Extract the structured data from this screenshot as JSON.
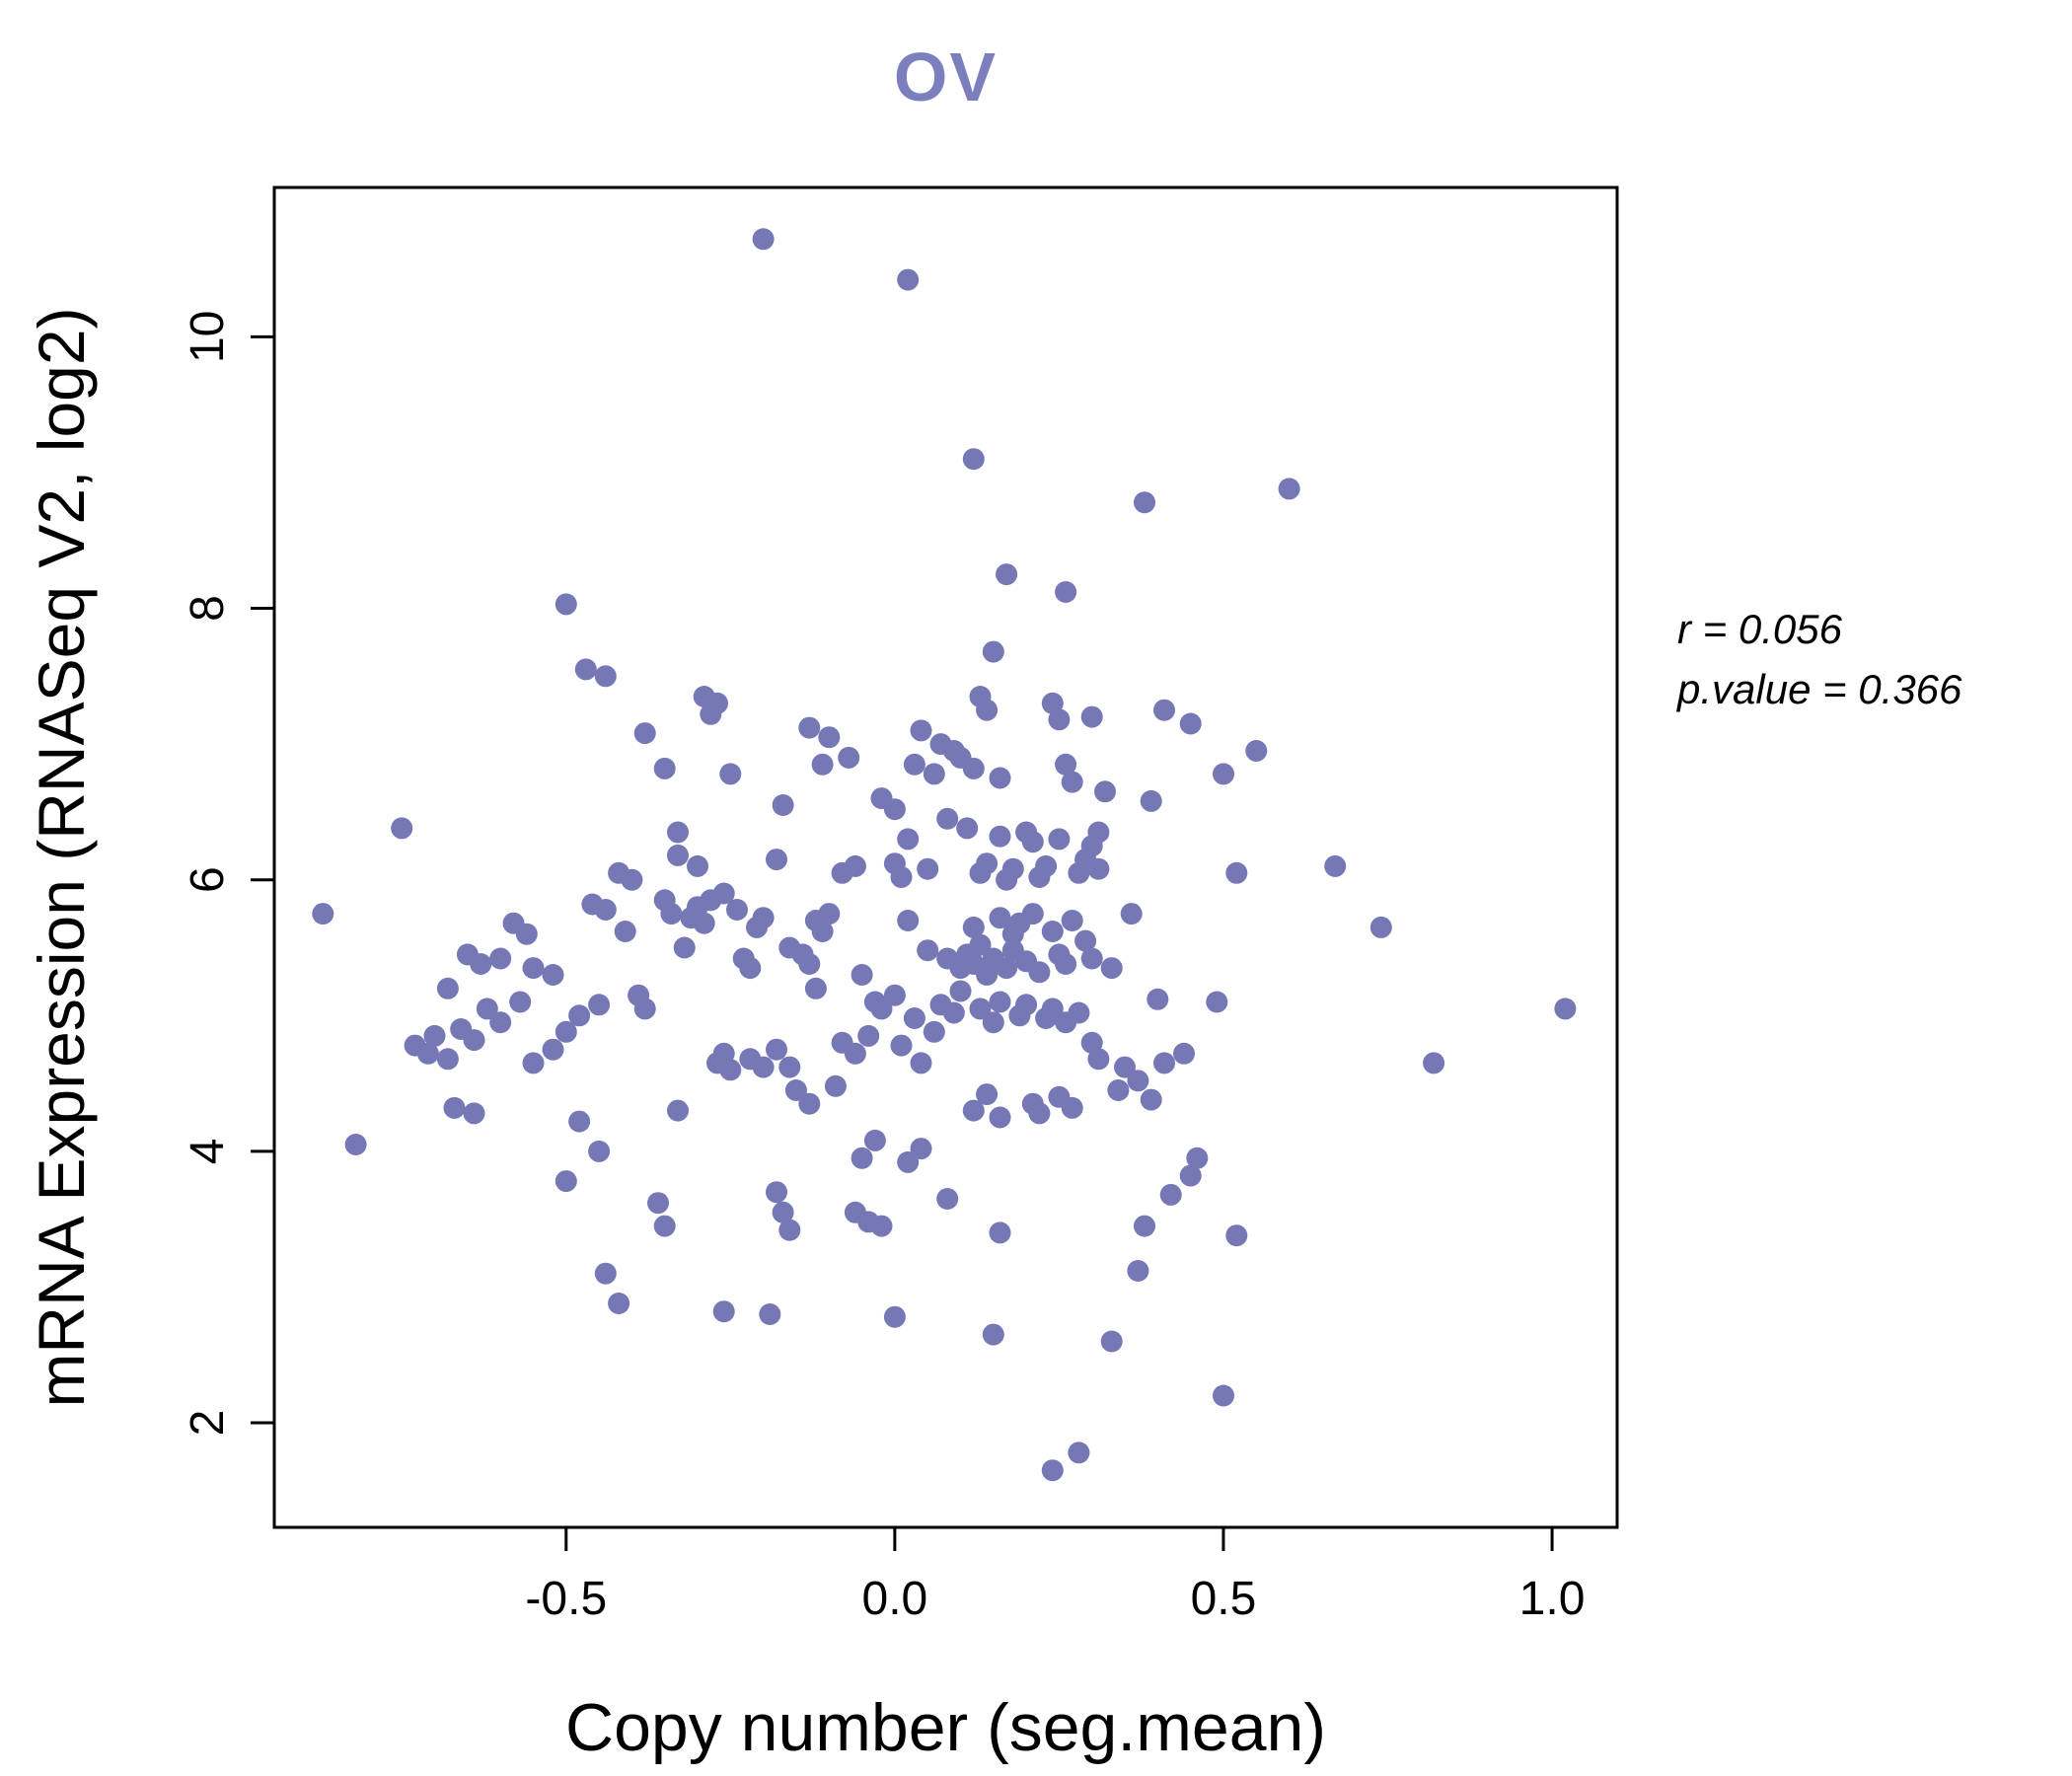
{
  "title": "OV",
  "annotation": {
    "line1": "r = 0.056",
    "line2": "p.value = 0.366"
  },
  "colors": {
    "point": "#7578b4",
    "title": "#7b7fbe",
    "axis": "#000000"
  },
  "chart_data": {
    "type": "scatter",
    "title": "OV",
    "xlabel": "Copy number (seg.mean)",
    "ylabel": "mRNA Expression (RNASeq V2, log2)",
    "xlim": [
      -0.944,
      1.099
    ],
    "ylim": [
      1.23,
      11.1
    ],
    "xticks": [
      -0.5,
      0.0,
      0.5,
      1.0
    ],
    "xtick_labels": [
      "-0.5",
      "0.0",
      "0.5",
      "1.0"
    ],
    "yticks": [
      2,
      4,
      6,
      8,
      10
    ],
    "ytick_labels": [
      "2",
      "4",
      "6",
      "8",
      "10"
    ],
    "grid": false,
    "legend": "none",
    "r": 0.056,
    "p_value": 0.366,
    "points": [
      [
        -0.2,
        10.72
      ],
      [
        0.02,
        10.42
      ],
      [
        0.12,
        9.1
      ],
      [
        0.38,
        8.78
      ],
      [
        0.6,
        8.88
      ],
      [
        0.17,
        8.25
      ],
      [
        0.26,
        8.12
      ],
      [
        -0.5,
        8.03
      ],
      [
        -0.47,
        7.55
      ],
      [
        -0.44,
        7.5
      ],
      [
        -0.29,
        7.35
      ],
      [
        -0.27,
        7.3
      ],
      [
        -0.28,
        7.22
      ],
      [
        0.15,
        7.68
      ],
      [
        0.13,
        7.35
      ],
      [
        0.14,
        7.25
      ],
      [
        0.24,
        7.3
      ],
      [
        0.25,
        7.18
      ],
      [
        0.3,
        7.2
      ],
      [
        0.41,
        7.25
      ],
      [
        0.45,
        7.15
      ],
      [
        -0.38,
        7.08
      ],
      [
        -0.13,
        7.12
      ],
      [
        -0.1,
        7.05
      ],
      [
        0.04,
        7.1
      ],
      [
        0.07,
        7.0
      ],
      [
        0.09,
        6.95
      ],
      [
        0.1,
        6.9
      ],
      [
        0.55,
        6.95
      ],
      [
        -0.35,
        6.82
      ],
      [
        -0.25,
        6.78
      ],
      [
        -0.11,
        6.85
      ],
      [
        -0.07,
        6.9
      ],
      [
        0.03,
        6.85
      ],
      [
        0.06,
        6.78
      ],
      [
        0.12,
        6.82
      ],
      [
        0.16,
        6.75
      ],
      [
        0.26,
        6.85
      ],
      [
        0.27,
        6.72
      ],
      [
        0.32,
        6.65
      ],
      [
        0.5,
        6.78
      ],
      [
        -0.17,
        6.55
      ],
      [
        -0.02,
        6.6
      ],
      [
        0.0,
        6.52
      ],
      [
        0.39,
        6.58
      ],
      [
        0.08,
        6.45
      ],
      [
        -0.75,
        6.38
      ],
      [
        -0.33,
        6.35
      ],
      [
        0.02,
        6.3
      ],
      [
        0.11,
        6.38
      ],
      [
        0.16,
        6.32
      ],
      [
        0.2,
        6.35
      ],
      [
        0.21,
        6.28
      ],
      [
        0.25,
        6.3
      ],
      [
        0.3,
        6.25
      ],
      [
        0.31,
        6.35
      ],
      [
        -0.42,
        6.05
      ],
      [
        -0.4,
        6.0
      ],
      [
        -0.33,
        6.18
      ],
      [
        -0.3,
        6.1
      ],
      [
        -0.18,
        6.15
      ],
      [
        -0.08,
        6.05
      ],
      [
        -0.06,
        6.1
      ],
      [
        0.0,
        6.12
      ],
      [
        0.01,
        6.02
      ],
      [
        0.05,
        6.08
      ],
      [
        0.13,
        6.05
      ],
      [
        0.14,
        6.12
      ],
      [
        0.17,
        6.0
      ],
      [
        0.18,
        6.08
      ],
      [
        0.22,
        6.02
      ],
      [
        0.23,
        6.1
      ],
      [
        0.28,
        6.05
      ],
      [
        0.29,
        6.15
      ],
      [
        0.31,
        6.08
      ],
      [
        0.52,
        6.05
      ],
      [
        0.67,
        6.1
      ],
      [
        -0.87,
        5.75
      ],
      [
        -0.46,
        5.82
      ],
      [
        -0.44,
        5.78
      ],
      [
        -0.41,
        5.62
      ],
      [
        -0.35,
        5.85
      ],
      [
        -0.34,
        5.75
      ],
      [
        -0.31,
        5.72
      ],
      [
        -0.3,
        5.8
      ],
      [
        -0.29,
        5.68
      ],
      [
        -0.28,
        5.85
      ],
      [
        -0.26,
        5.9
      ],
      [
        -0.24,
        5.78
      ],
      [
        -0.21,
        5.65
      ],
      [
        -0.2,
        5.72
      ],
      [
        -0.58,
        5.68
      ],
      [
        -0.56,
        5.6
      ],
      [
        -0.12,
        5.7
      ],
      [
        -0.11,
        5.62
      ],
      [
        -0.1,
        5.75
      ],
      [
        0.02,
        5.7
      ],
      [
        0.12,
        5.65
      ],
      [
        0.16,
        5.72
      ],
      [
        0.18,
        5.6
      ],
      [
        0.19,
        5.68
      ],
      [
        0.21,
        5.75
      ],
      [
        0.24,
        5.62
      ],
      [
        0.27,
        5.7
      ],
      [
        0.36,
        5.75
      ],
      [
        0.74,
        5.65
      ],
      [
        -0.65,
        5.45
      ],
      [
        -0.63,
        5.38
      ],
      [
        -0.6,
        5.42
      ],
      [
        -0.55,
        5.35
      ],
      [
        -0.52,
        5.3
      ],
      [
        -0.32,
        5.5
      ],
      [
        -0.23,
        5.42
      ],
      [
        -0.22,
        5.35
      ],
      [
        -0.16,
        5.5
      ],
      [
        -0.14,
        5.45
      ],
      [
        -0.13,
        5.38
      ],
      [
        -0.05,
        5.3
      ],
      [
        0.05,
        5.48
      ],
      [
        0.08,
        5.42
      ],
      [
        0.1,
        5.35
      ],
      [
        0.11,
        5.45
      ],
      [
        0.12,
        5.38
      ],
      [
        0.13,
        5.52
      ],
      [
        0.14,
        5.3
      ],
      [
        0.15,
        5.42
      ],
      [
        0.17,
        5.35
      ],
      [
        0.18,
        5.48
      ],
      [
        0.2,
        5.4
      ],
      [
        0.22,
        5.32
      ],
      [
        0.25,
        5.45
      ],
      [
        0.26,
        5.38
      ],
      [
        0.29,
        5.55
      ],
      [
        0.3,
        5.42
      ],
      [
        0.33,
        5.35
      ],
      [
        -0.68,
        5.2
      ],
      [
        -0.62,
        5.05
      ],
      [
        -0.6,
        4.95
      ],
      [
        -0.57,
        5.1
      ],
      [
        -0.48,
        5.0
      ],
      [
        -0.45,
        5.08
      ],
      [
        -0.39,
        5.15
      ],
      [
        -0.38,
        5.05
      ],
      [
        -0.12,
        5.2
      ],
      [
        -0.03,
        5.1
      ],
      [
        -0.02,
        5.05
      ],
      [
        0.0,
        5.15
      ],
      [
        0.03,
        4.98
      ],
      [
        0.07,
        5.08
      ],
      [
        0.09,
        5.02
      ],
      [
        0.1,
        5.18
      ],
      [
        0.13,
        5.05
      ],
      [
        0.15,
        4.95
      ],
      [
        0.16,
        5.1
      ],
      [
        0.19,
        5.0
      ],
      [
        0.2,
        5.08
      ],
      [
        0.23,
        4.98
      ],
      [
        0.24,
        5.05
      ],
      [
        0.26,
        4.95
      ],
      [
        0.28,
        5.02
      ],
      [
        0.4,
        5.12
      ],
      [
        0.49,
        5.1
      ],
      [
        1.02,
        5.05
      ],
      [
        -0.73,
        4.78
      ],
      [
        -0.71,
        4.72
      ],
      [
        -0.7,
        4.85
      ],
      [
        -0.68,
        4.68
      ],
      [
        -0.66,
        4.9
      ],
      [
        -0.64,
        4.82
      ],
      [
        -0.55,
        4.65
      ],
      [
        -0.52,
        4.75
      ],
      [
        -0.5,
        4.88
      ],
      [
        -0.27,
        4.65
      ],
      [
        -0.26,
        4.72
      ],
      [
        -0.25,
        4.6
      ],
      [
        -0.22,
        4.68
      ],
      [
        -0.2,
        4.62
      ],
      [
        -0.18,
        4.75
      ],
      [
        -0.16,
        4.62
      ],
      [
        -0.08,
        4.8
      ],
      [
        -0.06,
        4.72
      ],
      [
        -0.04,
        4.85
      ],
      [
        0.01,
        4.78
      ],
      [
        0.04,
        4.65
      ],
      [
        0.06,
        4.88
      ],
      [
        0.3,
        4.8
      ],
      [
        0.31,
        4.68
      ],
      [
        0.35,
        4.62
      ],
      [
        0.41,
        4.65
      ],
      [
        0.44,
        4.72
      ],
      [
        0.82,
        4.65
      ],
      [
        -0.67,
        4.32
      ],
      [
        -0.64,
        4.28
      ],
      [
        -0.48,
        4.22
      ],
      [
        -0.33,
        4.3
      ],
      [
        -0.15,
        4.45
      ],
      [
        -0.13,
        4.35
      ],
      [
        -0.09,
        4.48
      ],
      [
        0.12,
        4.3
      ],
      [
        0.14,
        4.42
      ],
      [
        0.16,
        4.25
      ],
      [
        0.21,
        4.35
      ],
      [
        0.22,
        4.28
      ],
      [
        0.25,
        4.4
      ],
      [
        0.27,
        4.32
      ],
      [
        0.34,
        4.45
      ],
      [
        0.37,
        4.52
      ],
      [
        0.39,
        4.38
      ],
      [
        -0.82,
        4.05
      ],
      [
        -0.45,
        4.0
      ],
      [
        -0.05,
        3.95
      ],
      [
        -0.03,
        4.08
      ],
      [
        0.02,
        3.92
      ],
      [
        0.04,
        4.02
      ],
      [
        0.46,
        3.95
      ],
      [
        -0.5,
        3.78
      ],
      [
        -0.36,
        3.62
      ],
      [
        -0.35,
        3.45
      ],
      [
        -0.18,
        3.7
      ],
      [
        -0.17,
        3.55
      ],
      [
        -0.16,
        3.42
      ],
      [
        -0.06,
        3.55
      ],
      [
        -0.04,
        3.48
      ],
      [
        -0.02,
        3.45
      ],
      [
        0.08,
        3.65
      ],
      [
        0.42,
        3.68
      ],
      [
        0.45,
        3.82
      ],
      [
        0.16,
        3.4
      ],
      [
        0.38,
        3.45
      ],
      [
        0.52,
        3.38
      ],
      [
        -0.44,
        3.1
      ],
      [
        -0.42,
        2.88
      ],
      [
        -0.26,
        2.82
      ],
      [
        -0.19,
        2.8
      ],
      [
        0.0,
        2.78
      ],
      [
        0.37,
        3.12
      ],
      [
        0.15,
        2.65
      ],
      [
        0.33,
        2.6
      ],
      [
        0.5,
        2.2
      ],
      [
        0.24,
        1.65
      ],
      [
        0.28,
        1.78
      ]
    ]
  }
}
